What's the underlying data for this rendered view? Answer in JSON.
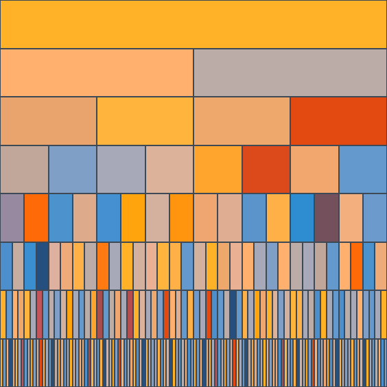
{
  "palette": {
    "orange": "#ffb127",
    "peach": "#ffb06e",
    "taupe": "#bcaca8",
    "tan": "#e9a46e",
    "amber": "#ffb43d",
    "lightorange": "#efa86b",
    "red": "#e24a12",
    "grayblue": "#7f9fc6",
    "lilac": "#a7a9b8",
    "blue": "#6399cc",
    "darkblue": "#244f7f",
    "plum": "#764d5a",
    "brightblue": "#2c8fd0"
  },
  "levels": [
    {
      "cells": [
        "#ffb127"
      ]
    },
    {
      "cells": [
        "#ffb06e",
        "#bcaca8"
      ]
    },
    {
      "cells": [
        "#e9a46e",
        "#ffb43d",
        "#efa86b",
        "#e24a12"
      ]
    },
    {
      "cells": [
        "#c1a79a",
        "#7f9fc6",
        "#a7a9b8",
        "#dcb29b",
        "#ffa52e",
        "#dc4a1c",
        "#f2a76e",
        "#6399cc"
      ]
    },
    {
      "cells": [
        "#978aa0",
        "#ff6a08",
        "#4c92cc",
        "#ddab8b",
        "#4590d0",
        "#ffa40d",
        "#d4b09f",
        "#ff950f",
        "#efa670",
        "#dfae92",
        "#5b94cb",
        "#ffb148",
        "#2e8dd0",
        "#744f5c",
        "#f3b07e",
        "#6d9acc"
      ]
    },
    {
      "cells": [
        "#4c8fcc",
        "#c6ad9f",
        "#3a8fd0",
        "#244f7f",
        "#ddb0a0",
        "#efaa7a",
        "#ffb148",
        "#bcaca8",
        "#ff7a10",
        "#a7a9b8",
        "#ffb127",
        "#d4b09f",
        "#e9b094",
        "#ffb43d",
        "#ffb148",
        "#6399cc",
        "#d4b09f",
        "#ffb127",
        "#efa86b",
        "#e9b094",
        "#ffb06e",
        "#a7a9b8",
        "#7f9fc6",
        "#ffb06e",
        "#bcaca8",
        "#a7a9b8",
        "#c1a79a",
        "#6399cc",
        "#ffb06e",
        "#ff6a08",
        "#4c92cc",
        "#efaa7a"
      ]
    },
    {
      "cells": [
        "#ffb127",
        "#6399cc",
        "#ffb06e",
        "#efa86b",
        "#ffb43d",
        "#a7a9b8",
        "#c2555a",
        "#6399cc",
        "#bcaca8",
        "#7f9fc6",
        "#d4b09f",
        "#ffa40d",
        "#a7a9b8",
        "#6399cc",
        "#bcaca8",
        "#ffa52e",
        "#a94e4f",
        "#6399cc",
        "#bcaca8",
        "#efa670",
        "#a7a9b8",
        "#b44e4e",
        "#ffb127",
        "#dcb29b",
        "#a7a9b8",
        "#efa86b",
        "#7f9fc6",
        "#e24a12",
        "#ffb06e",
        "#dfae92",
        "#6399cc",
        "#ffb148",
        "#6d9acc",
        "#a7a9b8",
        "#e24a12",
        "#4c8fcc",
        "#6399cc",
        "#bcaca8",
        "#244f7f",
        "#6399cc",
        "#ffb148",
        "#a7a9b8",
        "#ffa40d",
        "#efa670",
        "#ffb127",
        "#dcb29b",
        "#7f9fc6",
        "#d4b09f",
        "#ffb43d",
        "#ffb148",
        "#a7a9b8",
        "#bcaca8",
        "#4c8fcc",
        "#ffb127",
        "#a7a9b8",
        "#6399cc",
        "#4c8fcc",
        "#bcaca8",
        "#a7a9b8",
        "#ffb06e",
        "#7f9fc6",
        "#6399cc",
        "#a7a9b8",
        "#ffb127"
      ]
    },
    {
      "cells": [
        "#ffb127",
        "#6399cc",
        "#ffb06e",
        "#244f7f",
        "#efa86b",
        "#ffb43d",
        "#a7a9b8",
        "#c2555a",
        "#6399cc",
        "#bcaca8",
        "#ffa40d",
        "#7f9fc6",
        "#d4b09f",
        "#e24a12",
        "#ffb148",
        "#a7a9b8",
        "#6399cc",
        "#244f7f",
        "#bcaca8",
        "#ffa52e",
        "#efa670",
        "#6399cc",
        "#a7a9b8",
        "#ffb127",
        "#dcb29b",
        "#7f9fc6",
        "#ffb06e",
        "#efa86b",
        "#4c8fcc",
        "#a94e4f",
        "#ffb43d",
        "#a7a9b8",
        "#6399cc",
        "#ffb148",
        "#244f7f",
        "#d4b09f",
        "#bcaca8",
        "#ffa40d",
        "#7f9fc6",
        "#e24a12",
        "#ffb06e",
        "#6399cc",
        "#a7a9b8",
        "#efa670",
        "#ffb127",
        "#4c8fcc",
        "#dcb29b",
        "#244f7f",
        "#ffb43d",
        "#bcaca8",
        "#7f9fc6",
        "#a7a9b8",
        "#ffb148",
        "#6399cc",
        "#efa86b",
        "#d4b09f",
        "#244f7f",
        "#ffb127",
        "#a7a9b8",
        "#6399cc",
        "#bcaca8",
        "#ffb06e",
        "#4c8fcc",
        "#7f9fc6",
        "#ffb127",
        "#6399cc",
        "#ffb06e",
        "#244f7f",
        "#efa86b",
        "#ffb43d",
        "#a7a9b8",
        "#c2555a",
        "#6399cc",
        "#bcaca8",
        "#ffa40d",
        "#7f9fc6",
        "#d4b09f",
        "#e24a12",
        "#ffb148",
        "#a7a9b8",
        "#6399cc",
        "#244f7f",
        "#bcaca8",
        "#ffa52e",
        "#efa670",
        "#6399cc",
        "#a7a9b8",
        "#ffb127",
        "#dcb29b",
        "#7f9fc6",
        "#ffb06e",
        "#efa86b",
        "#4c8fcc",
        "#a94e4f",
        "#ffb43d",
        "#a7a9b8",
        "#6399cc",
        "#ffb148",
        "#244f7f",
        "#d4b09f",
        "#bcaca8",
        "#ffa40d",
        "#7f9fc6",
        "#e24a12",
        "#ffb06e",
        "#6399cc",
        "#a7a9b8",
        "#efa670",
        "#ffb127",
        "#4c8fcc",
        "#dcb29b",
        "#244f7f",
        "#ffb43d",
        "#bcaca8",
        "#7f9fc6",
        "#a7a9b8",
        "#ffb148",
        "#6399cc",
        "#efa86b",
        "#d4b09f",
        "#244f7f",
        "#ffb127",
        "#a7a9b8",
        "#6399cc",
        "#bcaca8",
        "#ffb06e",
        "#4c8fcc",
        "#7f9fc6"
      ]
    }
  ]
}
